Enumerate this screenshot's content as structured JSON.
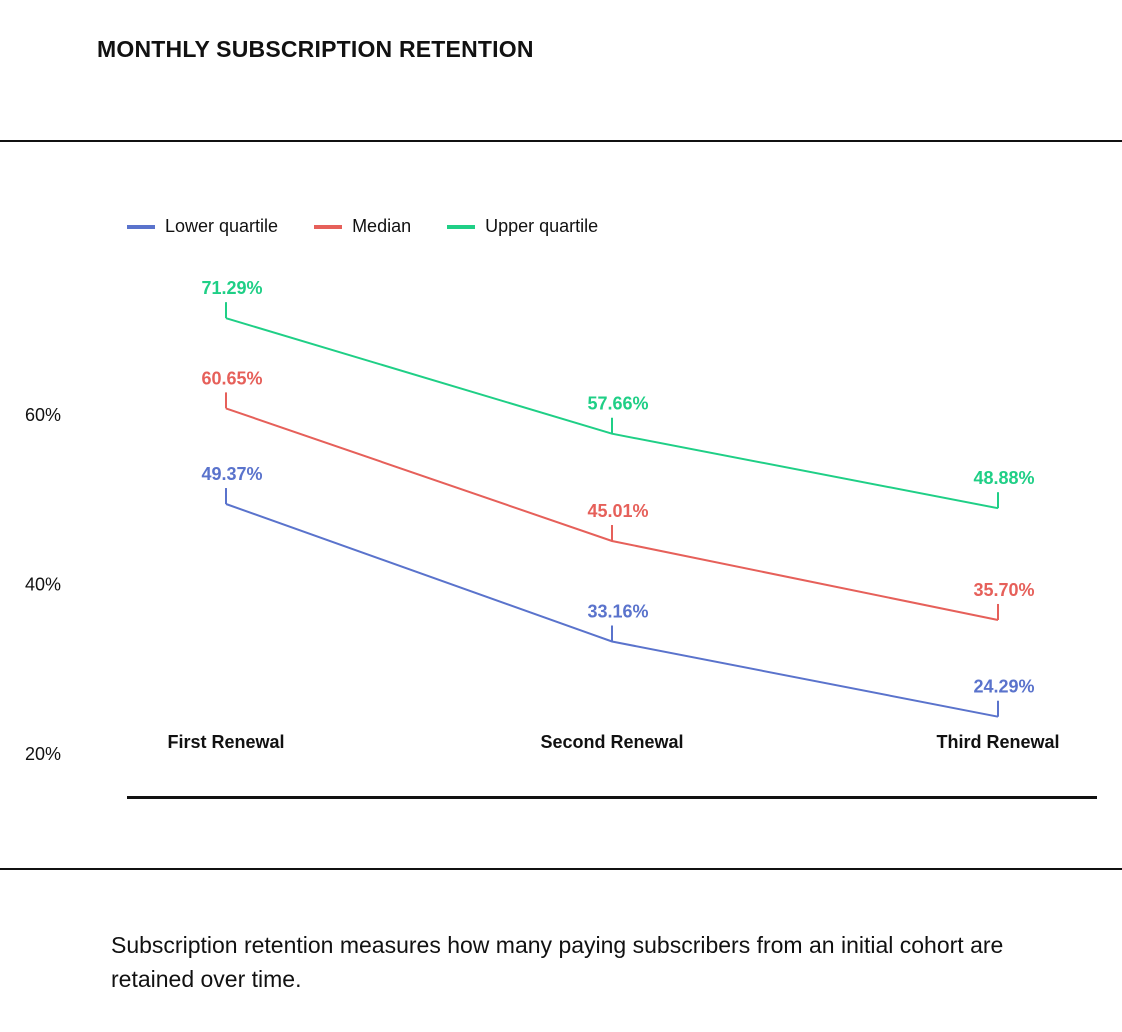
{
  "chart_data": {
    "type": "line",
    "title": "MONTHLY SUBSCRIPTION RETENTION",
    "categories": [
      "First Renewal",
      "Second Renewal",
      "Third Renewal"
    ],
    "series": [
      {
        "name": "Lower quartile",
        "color": "#5a73cc",
        "values": [
          49.37,
          33.16,
          24.29
        ],
        "labels": [
          "49.37%",
          "33.16%",
          "24.29%"
        ]
      },
      {
        "name": "Median",
        "color": "#e6605a",
        "values": [
          60.65,
          45.01,
          35.7
        ],
        "labels": [
          "60.65%",
          "45.01%",
          "35.70%"
        ]
      },
      {
        "name": "Upper quartile",
        "color": "#1fcf86",
        "values": [
          71.29,
          57.66,
          48.88
        ],
        "labels": [
          "71.29%",
          "57.66%",
          "48.88%"
        ]
      }
    ],
    "yticks": [
      {
        "value": 60,
        "label": "60%"
      },
      {
        "value": 40,
        "label": "40%"
      },
      {
        "value": 20,
        "label": "20%"
      }
    ],
    "ylabel": "",
    "xlabel": "",
    "legend": "top-left",
    "grid": false
  },
  "caption": "Subscription retention measures how many paying subscribers from an initial cohort are retained over time."
}
